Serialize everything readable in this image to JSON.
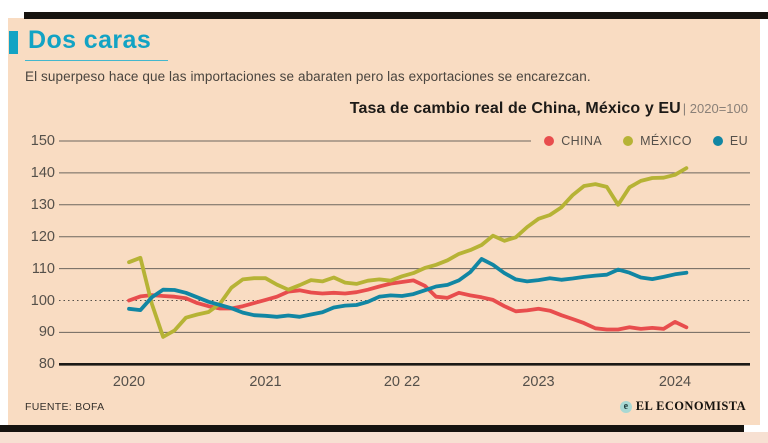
{
  "header": {
    "title": "Dos caras",
    "subtitle": "El superpeso hace que las importaciones se abaraten pero las exportaciones se encarezcan.",
    "accent_color": "#12a3c4"
  },
  "chart": {
    "title": "Tasa de cambio real de China, México y EU",
    "index_note": "| 2020=100"
  },
  "chart_data": {
    "type": "line",
    "title": "Tasa de cambio real de China, México y EU",
    "index_base_note": "2020=100",
    "x_unit": "month",
    "ylim": [
      80,
      150
    ],
    "yticks": [
      150,
      140,
      130,
      120,
      110,
      100,
      90,
      80
    ],
    "dotted_baseline_at": 100,
    "grid": "horizontal",
    "legend_position": "top-right",
    "xticks": [
      {
        "label": "2020",
        "month_index": 0
      },
      {
        "label": "2021",
        "month_index": 12
      },
      {
        "label": "20 22",
        "month_index": 24
      },
      {
        "label": "2023",
        "month_index": 36
      },
      {
        "label": "2024",
        "month_index": 48
      }
    ],
    "categories": [
      "2020-01",
      "2020-02",
      "2020-03",
      "2020-04",
      "2020-05",
      "2020-06",
      "2020-07",
      "2020-08",
      "2020-09",
      "2020-10",
      "2020-11",
      "2020-12",
      "2021-01",
      "2021-02",
      "2021-03",
      "2021-04",
      "2021-05",
      "2021-06",
      "2021-07",
      "2021-08",
      "2021-09",
      "2021-10",
      "2021-11",
      "2021-12",
      "2022-01",
      "2022-02",
      "2022-03",
      "2022-04",
      "2022-05",
      "2022-06",
      "2022-07",
      "2022-08",
      "2022-09",
      "2022-10",
      "2022-11",
      "2022-12",
      "2023-01",
      "2023-02",
      "2023-03",
      "2023-04",
      "2023-05",
      "2023-06",
      "2023-07",
      "2023-08",
      "2023-09",
      "2023-10",
      "2023-11",
      "2023-12",
      "2024-01",
      "2024-02"
    ],
    "series": [
      {
        "name": "CHINA",
        "color": "#e84d4d",
        "values": [
          100.0,
          101.3,
          101.7,
          101.4,
          101.2,
          100.7,
          99.2,
          98.2,
          97.5,
          97.5,
          98.2,
          99.2,
          100.2,
          101.2,
          102.8,
          103.2,
          102.5,
          102.2,
          102.4,
          102.2,
          102.6,
          103.4,
          104.4,
          105.3,
          105.8,
          106.3,
          104.6,
          101.2,
          100.8,
          102.4,
          101.6,
          101.0,
          100.2,
          98.2,
          96.6,
          96.9,
          97.4,
          96.8,
          95.4,
          94.2,
          92.9,
          91.3,
          90.9,
          90.9,
          91.6,
          91.1,
          91.4,
          91.1,
          93.3,
          91.6
        ]
      },
      {
        "name": "MÉXICO",
        "color": "#b6b335",
        "values": [
          112.0,
          113.4,
          99.0,
          88.6,
          90.6,
          94.6,
          95.6,
          96.4,
          99.0,
          104.0,
          106.6,
          107.0,
          107.0,
          105.0,
          103.4,
          104.8,
          106.4,
          106.0,
          107.2,
          105.6,
          105.2,
          106.2,
          106.6,
          106.2,
          107.6,
          108.6,
          110.2,
          111.2,
          112.6,
          114.6,
          115.8,
          117.4,
          120.3,
          118.7,
          119.8,
          123.0,
          125.6,
          126.8,
          129.2,
          133.0,
          135.9,
          136.5,
          135.6,
          130.0,
          135.5,
          137.5,
          138.4,
          138.5,
          139.4,
          141.5
        ]
      },
      {
        "name": "EU",
        "color": "#1186a3",
        "values": [
          97.4,
          97.0,
          101.0,
          103.4,
          103.3,
          102.4,
          101.0,
          99.6,
          98.6,
          97.6,
          96.2,
          95.4,
          95.2,
          94.9,
          95.3,
          94.9,
          95.6,
          96.3,
          97.8,
          98.4,
          98.6,
          99.6,
          101.2,
          101.6,
          101.4,
          102.0,
          103.2,
          104.4,
          104.9,
          106.3,
          108.9,
          113.0,
          111.2,
          108.6,
          106.6,
          106.0,
          106.4,
          107.0,
          106.5,
          106.9,
          107.4,
          107.8,
          108.1,
          109.7,
          108.7,
          107.2,
          106.7,
          107.4,
          108.2,
          108.7
        ]
      }
    ]
  },
  "footer": {
    "source": "FUENTE: BOFA",
    "brand": "EL ECONOMISTA",
    "brand_mark": "e"
  }
}
